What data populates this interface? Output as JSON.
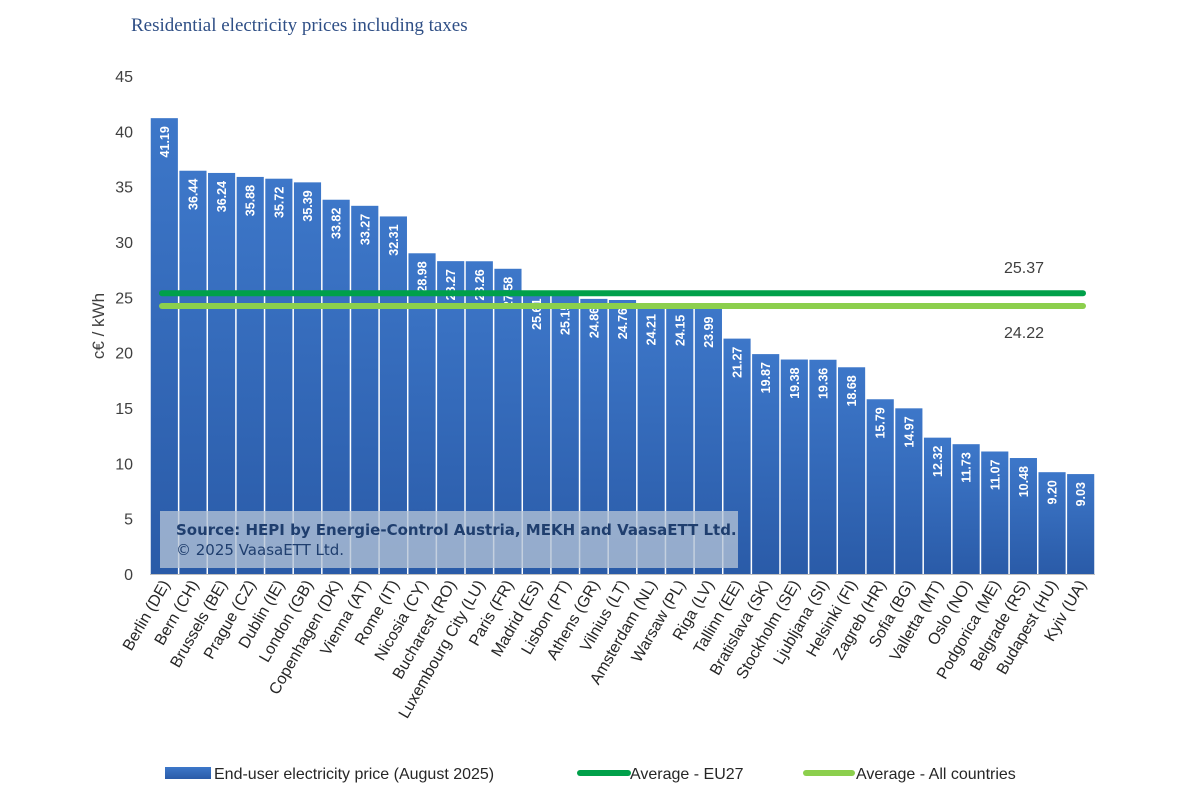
{
  "chart_data": {
    "type": "bar",
    "title": "Residential electricity prices including taxes",
    "ylabel": "c€ / kWh",
    "xlabel": "",
    "ylim": [
      0,
      45
    ],
    "yticks": [
      0,
      5,
      10,
      15,
      20,
      25,
      30,
      35,
      40,
      45
    ],
    "categories": [
      "Berlin (DE)",
      "Bern (CH)",
      "Brussels (BE)",
      "Prague (CZ)",
      "Dublin (IE)",
      "London (GB)",
      "Copenhagen (DK)",
      "Vienna (AT)",
      "Rome (IT)",
      "Nicosia (CY)",
      "Bucharest (RO)",
      "Luxembourg City (LU)",
      "Paris (FR)",
      "Madrid (ES)",
      "Lisbon (PT)",
      "Athens (GR)",
      "Vilnius (LT)",
      "Amsterdam (NL)",
      "Warsaw (PL)",
      "Riga (LV)",
      "Tallinn (EE)",
      "Bratislava (SK)",
      "Stockholm (SE)",
      "Ljubljana (SI)",
      "Helsinki (FI)",
      "Zagreb (HR)",
      "Sofia (BG)",
      "Valletta (MT)",
      "Oslo (NO)",
      "Podgorica (ME)",
      "Belgrade (RS)",
      "Budapest (HU)",
      "Kyiv (UA)"
    ],
    "series": [
      {
        "name": "End-user electricity price (August 2025)",
        "color": "#3a72c4",
        "values": [
          41.19,
          36.44,
          36.24,
          35.88,
          35.72,
          35.39,
          33.82,
          33.27,
          32.31,
          28.98,
          28.27,
          28.26,
          27.58,
          25.61,
          25.15,
          24.86,
          24.76,
          24.21,
          24.15,
          23.99,
          21.27,
          19.87,
          19.38,
          19.36,
          18.68,
          15.79,
          14.97,
          12.32,
          11.73,
          11.07,
          10.48,
          9.2,
          9.03
        ],
        "labels": [
          "41.19",
          "36.44",
          "36.24",
          "35.88",
          "35.72",
          "35.39",
          "33.82",
          "33.27",
          "32.31",
          "28.98",
          "28.27",
          "28.26",
          "27.58",
          "25.61",
          "25.15",
          "24.86",
          "24.76",
          "24.21",
          "24.15",
          "23.99",
          "21.27",
          "19.87",
          "19.38",
          "19.36",
          "18.68",
          "15.79",
          "14.97",
          "12.32",
          "11.73",
          "11.07",
          "10.48",
          "9.20",
          "9.03"
        ]
      },
      {
        "name": "Average - EU27",
        "type": "line",
        "color": "#00a04a",
        "value": 25.37,
        "label": "25.37"
      },
      {
        "name": "Average - All countries",
        "type": "line",
        "color": "#8ccf4d",
        "value": 24.22,
        "label": "24.22"
      }
    ],
    "grid": false,
    "legend": "bottom",
    "source": [
      "Source: HEPI by Energie-Control Austria, MEKH and VaasaETT Ltd.",
      "© 2025 VaasaETT Ltd."
    ]
  }
}
